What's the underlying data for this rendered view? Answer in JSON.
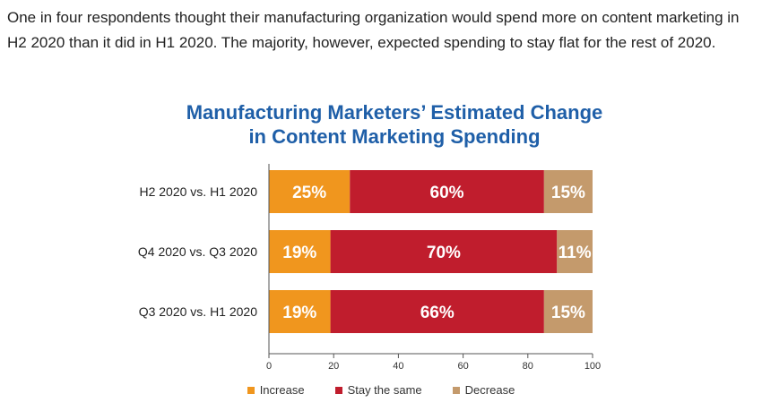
{
  "intro": {
    "text": "One in four respondents thought their manufacturing organization would spend more on content marketing in H2 2020 than it did in H1 2020. The majority, however, expected spending to stay flat for the rest of 2020."
  },
  "chart_data": {
    "type": "bar",
    "orientation": "horizontal",
    "stacked": true,
    "title_line1": "Manufacturing Marketers’ Estimated Change",
    "title_line2": "in Content Marketing Spending",
    "categories": [
      "H2 2020 vs. H1 2020",
      "Q4 2020 vs. Q3 2020",
      "Q3 2020 vs. H1 2020"
    ],
    "series": [
      {
        "name": "Increase",
        "color": "#f0961e",
        "values": [
          25,
          19,
          19
        ],
        "labels": [
          "25%",
          "19%",
          "19%"
        ]
      },
      {
        "name": "Stay the same",
        "color": "#c01d2d",
        "values": [
          60,
          70,
          66
        ],
        "labels": [
          "60%",
          "70%",
          "66%"
        ]
      },
      {
        "name": "Decrease",
        "color": "#c49a6c",
        "values": [
          15,
          11,
          15
        ],
        "labels": [
          "15%",
          "11%",
          "15%"
        ]
      }
    ],
    "xlim": [
      0,
      100
    ],
    "xticks": [
      "0",
      "20",
      "40",
      "60",
      "80",
      "100"
    ],
    "grid": false,
    "legend_position": "bottom"
  }
}
